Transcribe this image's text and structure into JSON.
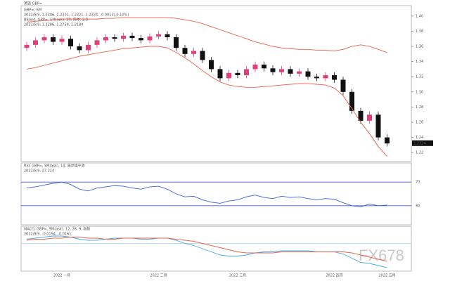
{
  "chart_data": [
    {
      "type": "candlestick",
      "header": "英镑 GBP=",
      "title": "GBP=, 5M",
      "subtitle": "2022/5/9, 1.2306, 1.2331, 1.2321, 1.2324, -0.0013(-0.10%)",
      "band_title": "BBand, GBP=, 5M(ask), 20, 简单, 2.0",
      "band_subtitle": "2022/5/9, 1.3286, 1.2758, 1.2184",
      "watermark": "FX678",
      "last_price": {
        "value": 1.2324,
        "label": "1.2324"
      },
      "categories": [
        null,
        null,
        null,
        null,
        "2022 一月",
        null,
        null,
        null,
        null,
        null,
        null,
        null,
        null,
        null,
        null,
        "2022 二月",
        null,
        null,
        null,
        null,
        null,
        null,
        null,
        null,
        "2022 三月",
        null,
        null,
        null,
        null,
        null,
        null,
        null,
        null,
        null,
        null,
        "2022 四月",
        null,
        null,
        null,
        null,
        null,
        "2022 五月"
      ],
      "open": [
        1.358,
        1.362,
        1.368,
        1.372,
        1.366,
        1.37,
        1.36,
        1.355,
        1.362,
        1.368,
        1.372,
        1.37,
        1.374,
        1.371,
        1.368,
        1.373,
        1.376,
        1.372,
        1.358,
        1.35,
        1.354,
        1.342,
        1.33,
        1.318,
        1.325,
        1.322,
        1.33,
        1.336,
        1.331,
        1.326,
        1.33,
        1.324,
        1.327,
        1.32,
        1.318,
        1.322,
        1.316,
        1.3,
        1.275,
        1.262,
        1.27,
        1.24
      ],
      "high": [
        1.366,
        1.372,
        1.376,
        1.376,
        1.374,
        1.374,
        1.364,
        1.366,
        1.372,
        1.376,
        1.376,
        1.378,
        1.378,
        1.375,
        1.377,
        1.38,
        1.38,
        1.376,
        1.362,
        1.358,
        1.358,
        1.346,
        1.334,
        1.329,
        1.329,
        1.334,
        1.34,
        1.34,
        1.335,
        1.334,
        1.334,
        1.331,
        1.331,
        1.324,
        1.326,
        1.326,
        1.32,
        1.304,
        1.279,
        1.274,
        1.274,
        1.244
      ],
      "low": [
        1.354,
        1.358,
        1.364,
        1.362,
        1.362,
        1.356,
        1.351,
        1.351,
        1.358,
        1.364,
        1.366,
        1.366,
        1.367,
        1.364,
        1.364,
        1.369,
        1.368,
        1.354,
        1.346,
        1.346,
        1.338,
        1.326,
        1.314,
        1.314,
        1.318,
        1.318,
        1.326,
        1.327,
        1.322,
        1.322,
        1.32,
        1.32,
        1.316,
        1.314,
        1.314,
        1.312,
        1.296,
        1.271,
        1.258,
        1.258,
        1.236,
        1.228
      ],
      "close": [
        1.362,
        1.368,
        1.372,
        1.366,
        1.37,
        1.36,
        1.355,
        1.362,
        1.368,
        1.372,
        1.37,
        1.374,
        1.371,
        1.368,
        1.373,
        1.376,
        1.372,
        1.358,
        1.35,
        1.354,
        1.342,
        1.33,
        1.318,
        1.325,
        1.322,
        1.33,
        1.336,
        1.331,
        1.326,
        1.33,
        1.324,
        1.327,
        1.32,
        1.318,
        1.322,
        1.316,
        1.3,
        1.275,
        1.262,
        1.27,
        1.24,
        1.232
      ],
      "up_color": "#e0407a",
      "down_color": "#111111",
      "series": [
        {
          "color": "#e8614a",
          "values": [
            1.392,
            1.393,
            1.394,
            1.395,
            1.396,
            1.396,
            1.396,
            1.396,
            1.396,
            1.397,
            1.397,
            1.398,
            1.398,
            1.398,
            1.398,
            1.398,
            1.398,
            1.397,
            1.395,
            1.393,
            1.39,
            1.386,
            1.382,
            1.378,
            1.374,
            1.37,
            1.366,
            1.363,
            1.36,
            1.358,
            1.357,
            1.356,
            1.356,
            1.355,
            1.355,
            1.354,
            1.356,
            1.36,
            1.362,
            1.36,
            1.356,
            1.352
          ]
        },
        {
          "color": "#e8614a",
          "values": [
            1.33,
            1.332,
            1.335,
            1.338,
            1.341,
            1.344,
            1.347,
            1.349,
            1.351,
            1.353,
            1.355,
            1.357,
            1.358,
            1.359,
            1.36,
            1.36,
            1.358,
            1.352,
            1.345,
            1.337,
            1.328,
            1.32,
            1.313,
            1.309,
            1.307,
            1.306,
            1.306,
            1.307,
            1.308,
            1.309,
            1.31,
            1.311,
            1.311,
            1.31,
            1.309,
            1.305,
            1.295,
            1.278,
            1.26,
            1.245,
            1.228,
            1.215
          ]
        }
      ],
      "ylim": [
        1.21,
        1.41
      ],
      "yticks": [
        {
          "value": 1.22,
          "label": "1.22"
        },
        {
          "value": 1.24,
          "label": "1.24"
        },
        {
          "value": 1.26,
          "label": "1.26"
        },
        {
          "value": 1.28,
          "label": "1.28"
        },
        {
          "value": 1.3,
          "label": "1.30"
        },
        {
          "value": 1.32,
          "label": "1.32"
        },
        {
          "value": 1.34,
          "label": "1.34"
        },
        {
          "value": 1.36,
          "label": "1.36"
        },
        {
          "value": 1.38,
          "label": "1.38"
        },
        {
          "value": 1.4,
          "label": "1.40"
        }
      ]
    },
    {
      "type": "line",
      "title": "RSI, GBP=, 5M(ask), 14, 威尔德平滑",
      "subtitle": "2022/5/9, 27.214",
      "series": [
        {
          "color": "#3a5fd8",
          "values": [
            60,
            62,
            65,
            68,
            70,
            66,
            58,
            55,
            60,
            62,
            64,
            63,
            60,
            58,
            62,
            63,
            58,
            50,
            45,
            46,
            40,
            36,
            34,
            38,
            40,
            45,
            48,
            44,
            42,
            46,
            44,
            45,
            42,
            40,
            42,
            41,
            35,
            30,
            28,
            33,
            30,
            31
          ]
        }
      ],
      "ylim": [
        0,
        100
      ],
      "yticks": [
        30,
        70
      ],
      "grid": true,
      "grid_color": "#4a5ad8"
    },
    {
      "type": "line",
      "title": "MACD, GBP=, 5M(ask), 12, 26, 9, 指数",
      "subtitle": "2022/5/9, -0.0194, -0.0161",
      "series": [
        {
          "color": "#49a8e8",
          "values": [
            0.004,
            0.005,
            0.006,
            0.007,
            0.007,
            0.006,
            0.004,
            0.003,
            0.003,
            0.004,
            0.005,
            0.005,
            0.005,
            0.004,
            0.004,
            0.005,
            0.005,
            0.003,
            0.0,
            -0.002,
            -0.005,
            -0.008,
            -0.011,
            -0.012,
            -0.012,
            -0.011,
            -0.009,
            -0.008,
            -0.008,
            -0.007,
            -0.007,
            -0.007,
            -0.007,
            -0.008,
            -0.008,
            -0.008,
            -0.01,
            -0.014,
            -0.018,
            -0.019,
            -0.021,
            -0.023
          ]
        },
        {
          "color": "#e8614a",
          "values": [
            0.003,
            0.004,
            0.004,
            0.005,
            0.005,
            0.006,
            0.006,
            0.005,
            0.005,
            0.004,
            0.004,
            0.005,
            0.005,
            0.005,
            0.005,
            0.005,
            0.005,
            0.004,
            0.003,
            0.002,
            0.0,
            -0.002,
            -0.004,
            -0.006,
            -0.008,
            -0.009,
            -0.009,
            -0.009,
            -0.009,
            -0.008,
            -0.008,
            -0.008,
            -0.008,
            -0.008,
            -0.008,
            -0.008,
            -0.008,
            -0.009,
            -0.011,
            -0.013,
            -0.015,
            -0.017
          ]
        }
      ],
      "ylim": [
        -0.025,
        0.015
      ],
      "ref_lines": [
        0
      ],
      "grid_color": "#9fd3f0"
    }
  ]
}
